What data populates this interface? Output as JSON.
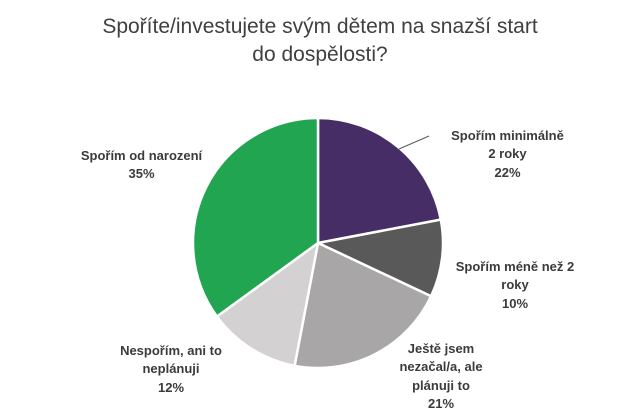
{
  "title": {
    "line1": "Spoříte/investujete svým dětem na snazší start",
    "line2": "do dospělosti?"
  },
  "chart_data": {
    "type": "pie",
    "title": "Spoříte/investujete svým dětem na snazší start do dospělosti?",
    "unit": "%",
    "direction": "clockwise",
    "start_angle_deg": 0,
    "legend_position": "none",
    "labels_position": "outside",
    "slices": [
      {
        "label": "Spořím minimálně 2 roky",
        "label_lines": [
          "Spořím minimálně",
          "2 roky"
        ],
        "pct": "22%",
        "value": 22,
        "color": "#472d66"
      },
      {
        "label": "Spořím méně než 2 roky",
        "label_lines": [
          "Spořím méně než 2",
          "roky"
        ],
        "pct": "10%",
        "value": 10,
        "color": "#595959"
      },
      {
        "label": "Ještě jsem nezačal/a, ale plánuji to",
        "label_lines": [
          "Ještě jsem",
          "nezačal/a, ale",
          "plánuji to"
        ],
        "pct": "21%",
        "value": 21,
        "color": "#a8a6a6"
      },
      {
        "label": "Nespořím, ani to neplánuji",
        "label_lines": [
          "Nespořím, ani to",
          "neplánuji"
        ],
        "pct": "12%",
        "value": 12,
        "color": "#d3d1d1"
      },
      {
        "label": "Spořím od narození",
        "label_lines": [
          "Spořím od narození"
        ],
        "pct": "35%",
        "value": 35,
        "color": "#21a550"
      }
    ]
  }
}
